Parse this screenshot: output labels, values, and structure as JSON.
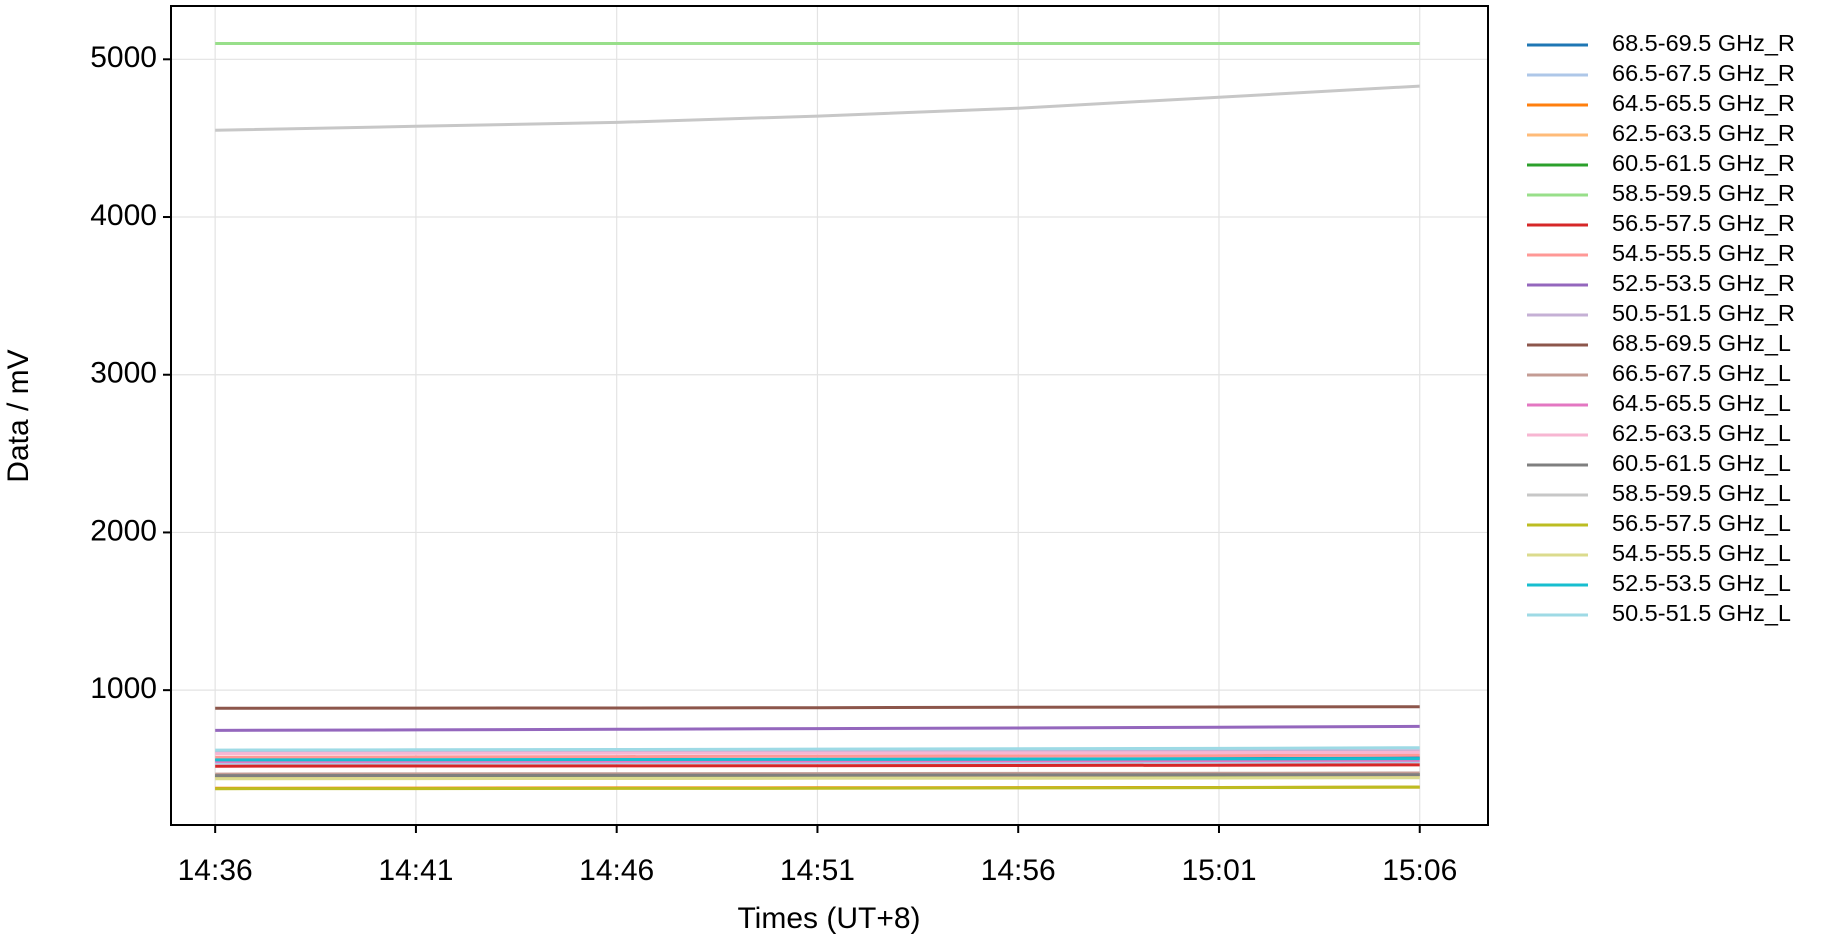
{
  "chart_data": {
    "type": "line",
    "xlabel": "Times (UT+8)",
    "ylabel": "Data / mV",
    "x": [
      "14:36",
      "14:41",
      "14:46",
      "14:51",
      "14:56",
      "15:01",
      "15:06"
    ],
    "xlim": [
      "14:34:54",
      "15:07:42"
    ],
    "xticks": [
      "14:36",
      "14:41",
      "14:46",
      "14:51",
      "14:56",
      "15:01",
      "15:06"
    ],
    "ylim": [
      145,
      5338
    ],
    "yticks": [
      1000,
      2000,
      3000,
      4000,
      5000
    ],
    "grid": true,
    "legend": "outside-right",
    "series": [
      {
        "name": "68.5-69.5 GHz_R",
        "color": "#1f77b4",
        "values": [
          555,
          557,
          559,
          561,
          563,
          566,
          570
        ]
      },
      {
        "name": "66.5-67.5 GHz_R",
        "color": "#aec7e8",
        "values": [
          538,
          539,
          540,
          541,
          542,
          544,
          546
        ]
      },
      {
        "name": "64.5-65.5 GHz_R",
        "color": "#ff7f0e",
        "values": [
          378,
          379,
          380,
          381,
          382,
          383,
          385
        ]
      },
      {
        "name": "62.5-63.5 GHz_R",
        "color": "#ffbb78",
        "values": [
          448,
          449,
          450,
          451,
          452,
          453,
          455
        ]
      },
      {
        "name": "60.5-61.5 GHz_R",
        "color": "#2ca02c",
        "values": [
          458,
          459,
          460,
          461,
          462,
          463,
          465
        ]
      },
      {
        "name": "58.5-59.5 GHz_R",
        "color": "#98df8a",
        "values": [
          5100,
          5100,
          5100,
          5100,
          5100,
          5100,
          5100
        ]
      },
      {
        "name": "56.5-57.5 GHz_R",
        "color": "#d62728",
        "values": [
          518,
          519,
          520,
          521,
          522,
          524,
          526
        ]
      },
      {
        "name": "54.5-55.5 GHz_R",
        "color": "#ff9896",
        "values": [
          575,
          577,
          579,
          581,
          583,
          585,
          588
        ]
      },
      {
        "name": "52.5-53.5 GHz_R",
        "color": "#9467bd",
        "values": [
          745,
          748,
          752,
          756,
          760,
          765,
          770
        ]
      },
      {
        "name": "50.5-51.5 GHz_R",
        "color": "#c5b0d5",
        "values": [
          608,
          609,
          610,
          611,
          612,
          614,
          616
        ]
      },
      {
        "name": "68.5-69.5 GHz_L",
        "color": "#8c564b",
        "values": [
          885,
          886,
          887,
          889,
          891,
          893,
          895
        ]
      },
      {
        "name": "66.5-67.5 GHz_L",
        "color": "#c49c94",
        "values": [
          468,
          469,
          470,
          471,
          472,
          473,
          475
        ]
      },
      {
        "name": "64.5-65.5 GHz_L",
        "color": "#e377c2",
        "values": [
          548,
          549,
          550,
          551,
          552,
          554,
          556
        ]
      },
      {
        "name": "62.5-63.5 GHz_L",
        "color": "#f7b6d2",
        "values": [
          598,
          599,
          600,
          601,
          602,
          604,
          606
        ]
      },
      {
        "name": "60.5-61.5 GHz_L",
        "color": "#7f7f7f",
        "values": [
          458,
          459,
          460,
          461,
          462,
          463,
          464
        ]
      },
      {
        "name": "58.5-59.5 GHz_L",
        "color": "#c7c7c7",
        "values": [
          4550,
          4575,
          4600,
          4640,
          4690,
          4760,
          4830
        ]
      },
      {
        "name": "56.5-57.5 GHz_L",
        "color": "#bcbd22",
        "values": [
          375,
          376,
          377,
          378,
          380,
          382,
          385
        ]
      },
      {
        "name": "54.5-55.5 GHz_L",
        "color": "#dbdb8d",
        "values": [
          438,
          439,
          440,
          441,
          442,
          443,
          445
        ]
      },
      {
        "name": "52.5-53.5 GHz_L",
        "color": "#17becf",
        "values": [
          558,
          559,
          560,
          561,
          562,
          564,
          566
        ]
      },
      {
        "name": "50.5-51.5 GHz_L",
        "color": "#9edae5",
        "values": [
          620,
          622,
          624,
          626,
          628,
          631,
          635
        ]
      }
    ]
  }
}
